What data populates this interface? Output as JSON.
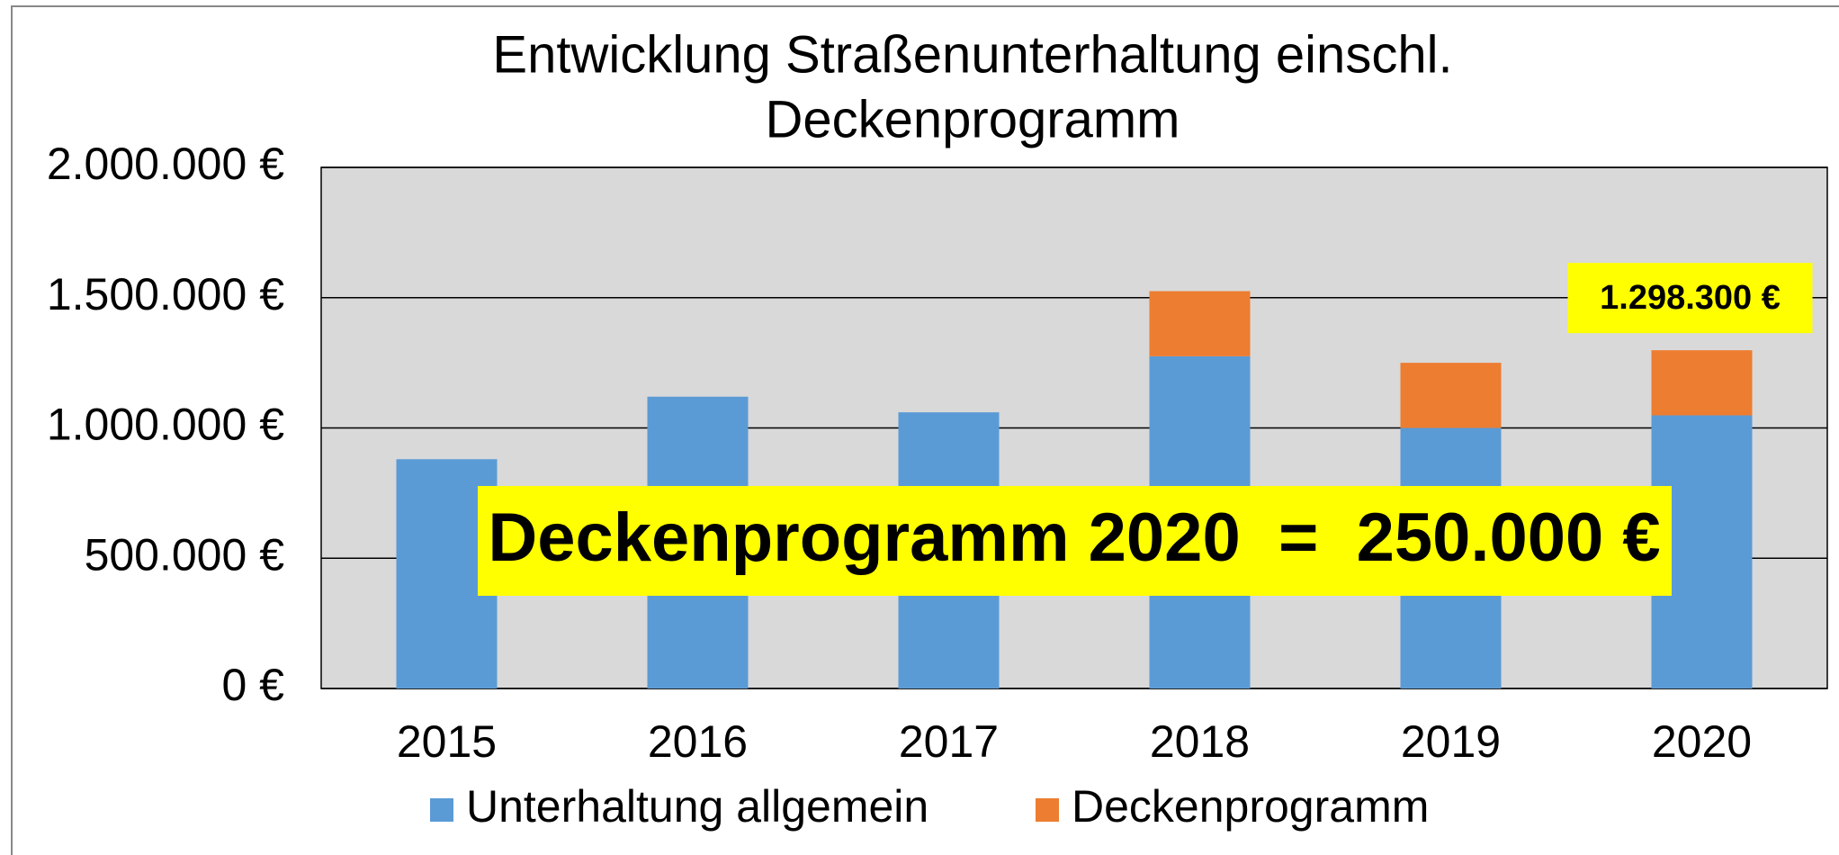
{
  "chart_data": {
    "type": "stacked_bar",
    "title": [
      "Entwicklung Straßenunterhaltung einschl.",
      "Deckenprogramm"
    ],
    "categories": [
      "2015",
      "2016",
      "2017",
      "2018",
      "2019",
      "2020"
    ],
    "series": [
      {
        "name": "Unterhaltung allgemein",
        "color": "#5b9bd5",
        "values": [
          880000,
          1120000,
          1060000,
          1275000,
          1000000,
          1048300
        ]
      },
      {
        "name": "Deckenprogramm",
        "color": "#ed7d31",
        "values": [
          0,
          0,
          0,
          250000,
          250000,
          250000
        ]
      }
    ],
    "ylim": [
      0,
      2000000
    ],
    "yticks": [
      {
        "value": 0,
        "label": "0 €"
      },
      {
        "value": 500000,
        "label": "500.000 €"
      },
      {
        "value": 1000000,
        "label": "1.000.000 €"
      },
      {
        "value": 1500000,
        "label": "1.500.000 €"
      },
      {
        "value": 2000000,
        "label": "2.000.000 €"
      }
    ],
    "grid": true,
    "legend": "bottom",
    "annotations": [
      {
        "text": "1.298.300 €",
        "value": 1298300,
        "category": "2020"
      },
      {
        "text": "Deckenprogramm 2020  =  250.000 €"
      }
    ]
  }
}
